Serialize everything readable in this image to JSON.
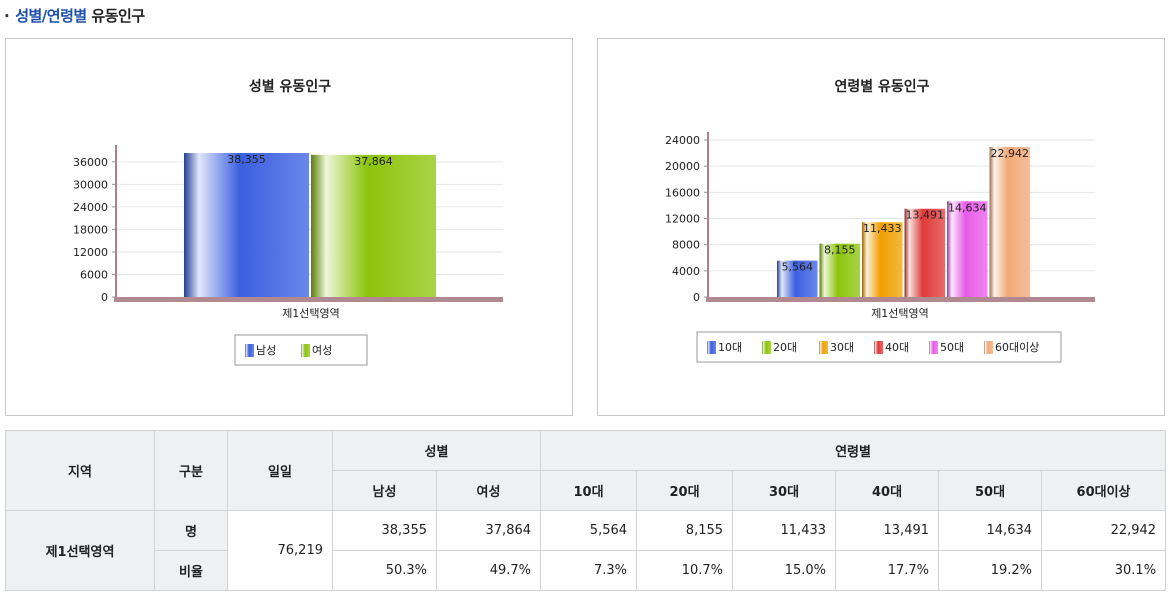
{
  "section_title": {
    "bullet": "·",
    "accent": "성별/연령별",
    "rest": "유동인구"
  },
  "chart_data": [
    {
      "type": "bar",
      "title": "성별 유동인구",
      "xlabel": "",
      "ylabel": "",
      "categories": [
        "제1선택영역"
      ],
      "series": [
        {
          "name": "남성",
          "values": [
            38355
          ],
          "labels": [
            "38,355"
          ],
          "color": "#3a5fe0"
        },
        {
          "name": "여성",
          "values": [
            37864
          ],
          "labels": [
            "37,864"
          ],
          "color": "#8cc40a"
        }
      ],
      "yticks": [
        "0",
        "6000",
        "12000",
        "18000",
        "24000",
        "30000",
        "36000"
      ],
      "ylim": [
        0,
        38355
      ],
      "grid": true,
      "legend": "bottom"
    },
    {
      "type": "bar",
      "title": "연령별 유동인구",
      "xlabel": "",
      "ylabel": "",
      "categories": [
        "제1선택영역"
      ],
      "series": [
        {
          "name": "10대",
          "values": [
            5564
          ],
          "labels": [
            "5,564"
          ],
          "color": "#3a5fe0"
        },
        {
          "name": "20대",
          "values": [
            8155
          ],
          "labels": [
            "8,155"
          ],
          "color": "#8cc40a"
        },
        {
          "name": "30대",
          "values": [
            11433
          ],
          "labels": [
            "11,433"
          ],
          "color": "#f0a000"
        },
        {
          "name": "40대",
          "values": [
            13491
          ],
          "labels": [
            "13,491"
          ],
          "color": "#e03a3a"
        },
        {
          "name": "50대",
          "values": [
            14634
          ],
          "labels": [
            "14,634"
          ],
          "color": "#e85be8"
        },
        {
          "name": "60대이상",
          "values": [
            22942
          ],
          "labels": [
            "22,942"
          ],
          "color": "#f0a878"
        }
      ],
      "yticks": [
        "0",
        "4000",
        "8000",
        "12000",
        "16000",
        "20000",
        "24000"
      ],
      "ylim": [
        0,
        24000
      ],
      "grid": true,
      "legend": "bottom"
    }
  ],
  "table": {
    "headers": {
      "region": "지역",
      "category": "구분",
      "total": "일일",
      "gender": "성별",
      "age": "연령별",
      "male": "남성",
      "female": "여성",
      "a10": "10대",
      "a20": "20대",
      "a30": "30대",
      "a40": "40대",
      "a50": "50대",
      "a60": "60대이상"
    },
    "row": {
      "region": "제1선택영역",
      "total": "76,219",
      "count_label": "명",
      "ratio_label": "비율",
      "counts": [
        "38,355",
        "37,864",
        "5,564",
        "8,155",
        "11,433",
        "13,491",
        "14,634",
        "22,942"
      ],
      "ratios": [
        "50.3%",
        "49.7%",
        "7.3%",
        "10.7%",
        "15.0%",
        "17.7%",
        "19.2%",
        "30.1%"
      ]
    }
  }
}
